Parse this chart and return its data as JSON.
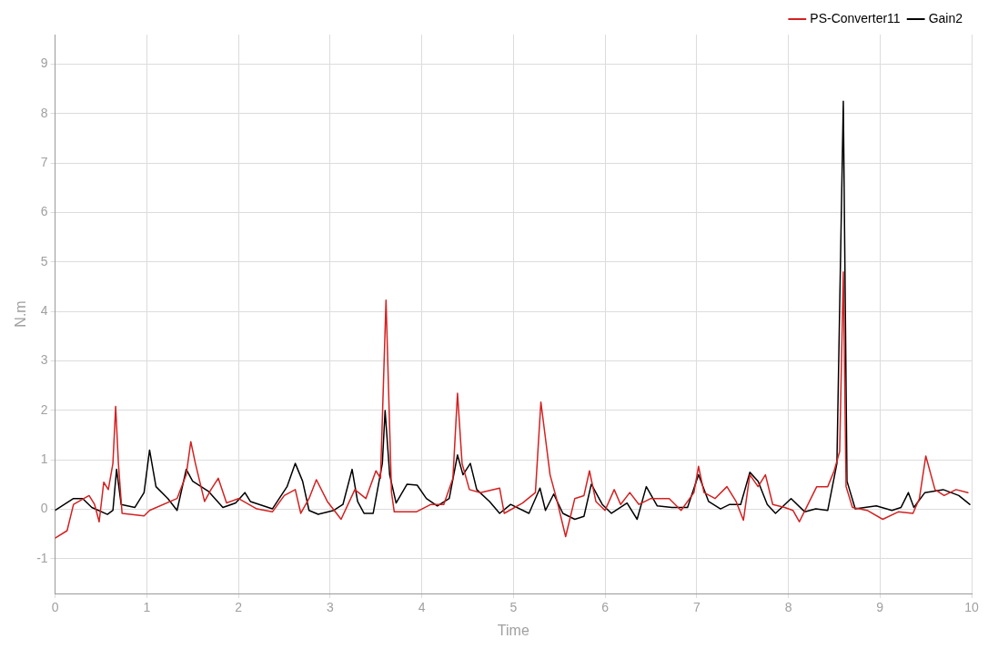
{
  "chart_data": {
    "type": "line",
    "xlabel": "Time",
    "ylabel": "N.m",
    "xlim": [
      0,
      10
    ],
    "xticks": [
      0,
      1,
      2,
      3,
      4,
      5,
      6,
      7,
      8,
      9,
      10
    ],
    "ylim": [
      -1.7,
      9.6
    ],
    "yticks": [
      -1,
      0,
      1,
      2,
      3,
      4,
      5,
      6,
      7,
      8,
      9
    ],
    "grid": true,
    "legend": "top right",
    "marker": "none",
    "line_style": "solid",
    "series": [
      {
        "name": "PS-Converter11",
        "color": "#d42020",
        "x": [
          0,
          0.13,
          0.2,
          0.37,
          0.43,
          0.48,
          0.53,
          0.58,
          0.63,
          0.66,
          0.69,
          0.73,
          0.97,
          1.03,
          1.33,
          1.43,
          1.48,
          1.53,
          1.63,
          1.7,
          1.78,
          1.87,
          2.0,
          2.2,
          2.37,
          2.5,
          2.62,
          2.68,
          2.77,
          2.85,
          2.97,
          3.12,
          3.27,
          3.39,
          3.5,
          3.55,
          3.61,
          3.67,
          3.7,
          3.94,
          4.1,
          4.24,
          4.34,
          4.39,
          4.44,
          4.52,
          4.64,
          4.85,
          4.9,
          5.1,
          5.24,
          5.3,
          5.4,
          5.47,
          5.57,
          5.67,
          5.77,
          5.83,
          5.9,
          6.0,
          6.1,
          6.17,
          6.27,
          6.37,
          6.5,
          6.7,
          6.83,
          6.97,
          7.02,
          7.08,
          7.2,
          7.33,
          7.43,
          7.51,
          7.58,
          7.67,
          7.75,
          7.83,
          7.96,
          8.05,
          8.12,
          8.23,
          8.31,
          8.43,
          8.5,
          8.56,
          8.6,
          8.63,
          8.7,
          8.86,
          9.03,
          9.2,
          9.36,
          9.43,
          9.5,
          9.6,
          9.7,
          9.83,
          9.96
        ],
        "values": [
          -0.58,
          -0.43,
          0.1,
          0.28,
          0.1,
          -0.25,
          0.55,
          0.4,
          0.93,
          2.08,
          0.93,
          -0.08,
          -0.13,
          -0.02,
          0.22,
          0.7,
          1.37,
          0.93,
          0.16,
          0.4,
          0.63,
          0.13,
          0.22,
          0.01,
          -0.05,
          0.28,
          0.4,
          -0.08,
          0.22,
          0.6,
          0.16,
          -0.2,
          0.4,
          0.22,
          0.78,
          0.63,
          4.23,
          0.34,
          -0.05,
          -0.05,
          0.1,
          0.1,
          0.63,
          2.35,
          0.93,
          0.4,
          0.34,
          0.43,
          -0.08,
          0.13,
          0.34,
          2.17,
          0.7,
          0.22,
          -0.55,
          0.22,
          0.28,
          0.78,
          0.16,
          -0.02,
          0.4,
          0.1,
          0.34,
          0.1,
          0.22,
          0.22,
          -0.02,
          0.34,
          0.87,
          0.34,
          0.22,
          0.46,
          0.16,
          -0.22,
          0.7,
          0.46,
          0.7,
          0.1,
          0.04,
          -0.02,
          -0.25,
          0.16,
          0.46,
          0.46,
          0.78,
          1.17,
          4.8,
          0.46,
          0.04,
          -0.02,
          -0.2,
          -0.05,
          -0.08,
          0.22,
          1.08,
          0.4,
          0.28,
          0.4,
          0.34
        ]
      },
      {
        "name": "Gain2",
        "color": "#000000",
        "x": [
          0,
          0.2,
          0.3,
          0.4,
          0.57,
          0.63,
          0.67,
          0.72,
          0.87,
          0.97,
          1.03,
          1.1,
          1.23,
          1.33,
          1.43,
          1.5,
          1.67,
          1.83,
          1.97,
          2.07,
          2.13,
          2.37,
          2.53,
          2.62,
          2.7,
          2.77,
          2.87,
          3.04,
          3.14,
          3.24,
          3.3,
          3.37,
          3.47,
          3.57,
          3.6,
          3.65,
          3.72,
          3.84,
          3.95,
          4.05,
          4.17,
          4.3,
          4.39,
          4.45,
          4.53,
          4.6,
          4.74,
          4.85,
          4.97,
          5.17,
          5.29,
          5.35,
          5.44,
          5.54,
          5.67,
          5.77,
          5.85,
          5.97,
          6.07,
          6.24,
          6.35,
          6.45,
          6.57,
          6.73,
          6.9,
          7.02,
          7.13,
          7.26,
          7.36,
          7.48,
          7.58,
          7.67,
          7.77,
          7.86,
          8.03,
          8.18,
          8.3,
          8.43,
          8.53,
          8.6,
          8.64,
          8.73,
          8.96,
          9.13,
          9.23,
          9.31,
          9.37,
          9.49,
          9.69,
          9.86,
          9.98
        ],
        "values": [
          -0.02,
          0.22,
          0.22,
          0.04,
          -0.1,
          -0.02,
          0.81,
          0.1,
          0.04,
          0.34,
          1.2,
          0.46,
          0.22,
          -0.02,
          0.81,
          0.57,
          0.37,
          0.04,
          0.13,
          0.34,
          0.16,
          0.01,
          0.46,
          0.93,
          0.57,
          -0.02,
          -0.1,
          -0.02,
          0.1,
          0.81,
          0.16,
          -0.08,
          -0.08,
          0.93,
          2.0,
          0.7,
          0.13,
          0.51,
          0.49,
          0.22,
          0.07,
          0.22,
          1.1,
          0.7,
          0.93,
          0.4,
          0.16,
          -0.08,
          0.1,
          -0.08,
          0.43,
          -0.02,
          0.31,
          -0.08,
          -0.2,
          -0.14,
          0.51,
          0.1,
          -0.08,
          0.13,
          -0.2,
          0.46,
          0.07,
          0.04,
          0.04,
          0.7,
          0.16,
          0.01,
          0.1,
          0.1,
          0.75,
          0.57,
          0.1,
          -0.08,
          0.22,
          -0.05,
          0.01,
          -0.02,
          0.93,
          8.25,
          0.57,
          0.01,
          0.07,
          -0.02,
          0.04,
          0.34,
          0.04,
          0.34,
          0.4,
          0.28,
          0.1
        ]
      }
    ]
  }
}
